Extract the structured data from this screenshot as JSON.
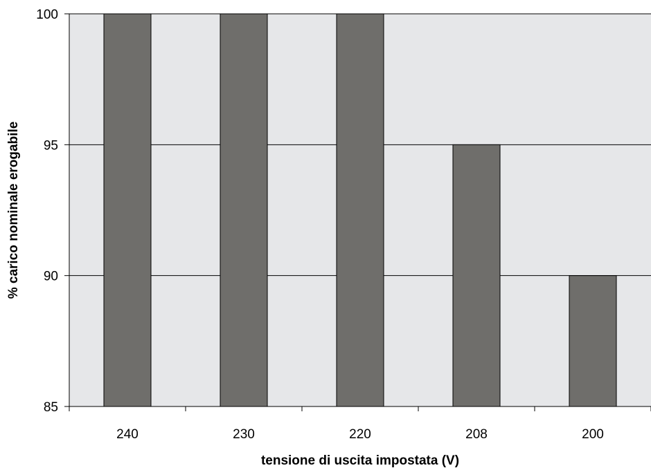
{
  "chart_data": {
    "type": "bar",
    "title": "",
    "xlabel": "tensione di uscita impostata (V)",
    "ylabel": "% carico nominale erogabile",
    "categories": [
      "240",
      "230",
      "220",
      "208",
      "200"
    ],
    "values": [
      100,
      100,
      100,
      95,
      90
    ],
    "ylim": [
      85,
      100
    ],
    "yticks": [
      85,
      90,
      95,
      100
    ],
    "grid": true,
    "legend": "none",
    "colors": {
      "plot_background": "#e6e7e9",
      "bar_fill": "#6f6e6b",
      "bar_stroke": "#000000",
      "gridline": "#000000"
    }
  }
}
